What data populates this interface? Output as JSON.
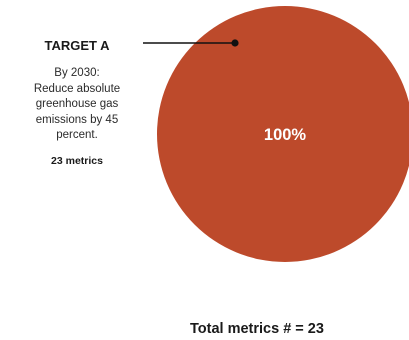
{
  "chart_data": {
    "type": "pie",
    "slices": [
      {
        "label": "TARGET A",
        "value": 100,
        "value_label": "100%",
        "description_lines": [
          "By 2030:",
          "Reduce absolute",
          "greenhouse gas",
          "emissions by 45",
          "percent."
        ],
        "count_label": "23 metrics",
        "color": "#bd4a2b"
      }
    ],
    "total_label": "Total metrics # = 23"
  }
}
